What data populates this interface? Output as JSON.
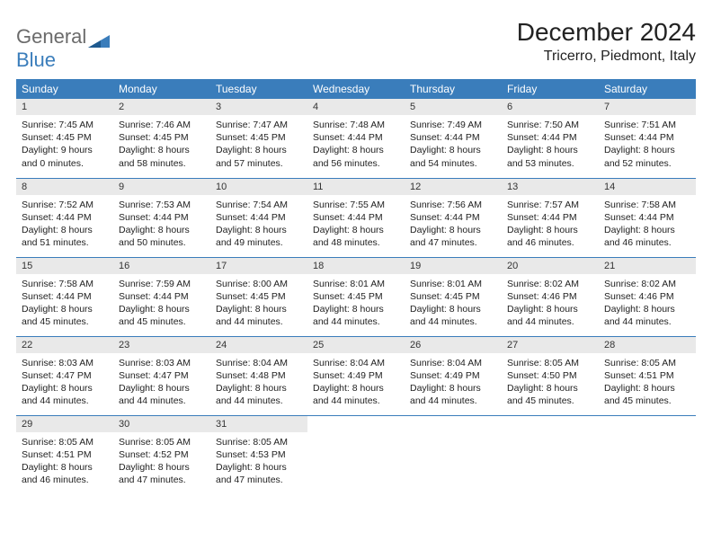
{
  "logo": {
    "text1": "General",
    "text2": "Blue",
    "shape_color": "#3a7dbb"
  },
  "title": "December 2024",
  "location": "Tricerro, Piedmont, Italy",
  "colors": {
    "header_bg": "#3a7dbb",
    "header_text": "#ffffff",
    "daynum_bg": "#e9e9e9",
    "border": "#3a7dbb"
  },
  "weekdays": [
    "Sunday",
    "Monday",
    "Tuesday",
    "Wednesday",
    "Thursday",
    "Friday",
    "Saturday"
  ],
  "weeks": [
    [
      {
        "num": "1",
        "sunrise": "7:45 AM",
        "sunset": "4:45 PM",
        "daylight": "9 hours and 0 minutes."
      },
      {
        "num": "2",
        "sunrise": "7:46 AM",
        "sunset": "4:45 PM",
        "daylight": "8 hours and 58 minutes."
      },
      {
        "num": "3",
        "sunrise": "7:47 AM",
        "sunset": "4:45 PM",
        "daylight": "8 hours and 57 minutes."
      },
      {
        "num": "4",
        "sunrise": "7:48 AM",
        "sunset": "4:44 PM",
        "daylight": "8 hours and 56 minutes."
      },
      {
        "num": "5",
        "sunrise": "7:49 AM",
        "sunset": "4:44 PM",
        "daylight": "8 hours and 54 minutes."
      },
      {
        "num": "6",
        "sunrise": "7:50 AM",
        "sunset": "4:44 PM",
        "daylight": "8 hours and 53 minutes."
      },
      {
        "num": "7",
        "sunrise": "7:51 AM",
        "sunset": "4:44 PM",
        "daylight": "8 hours and 52 minutes."
      }
    ],
    [
      {
        "num": "8",
        "sunrise": "7:52 AM",
        "sunset": "4:44 PM",
        "daylight": "8 hours and 51 minutes."
      },
      {
        "num": "9",
        "sunrise": "7:53 AM",
        "sunset": "4:44 PM",
        "daylight": "8 hours and 50 minutes."
      },
      {
        "num": "10",
        "sunrise": "7:54 AM",
        "sunset": "4:44 PM",
        "daylight": "8 hours and 49 minutes."
      },
      {
        "num": "11",
        "sunrise": "7:55 AM",
        "sunset": "4:44 PM",
        "daylight": "8 hours and 48 minutes."
      },
      {
        "num": "12",
        "sunrise": "7:56 AM",
        "sunset": "4:44 PM",
        "daylight": "8 hours and 47 minutes."
      },
      {
        "num": "13",
        "sunrise": "7:57 AM",
        "sunset": "4:44 PM",
        "daylight": "8 hours and 46 minutes."
      },
      {
        "num": "14",
        "sunrise": "7:58 AM",
        "sunset": "4:44 PM",
        "daylight": "8 hours and 46 minutes."
      }
    ],
    [
      {
        "num": "15",
        "sunrise": "7:58 AM",
        "sunset": "4:44 PM",
        "daylight": "8 hours and 45 minutes."
      },
      {
        "num": "16",
        "sunrise": "7:59 AM",
        "sunset": "4:44 PM",
        "daylight": "8 hours and 45 minutes."
      },
      {
        "num": "17",
        "sunrise": "8:00 AM",
        "sunset": "4:45 PM",
        "daylight": "8 hours and 44 minutes."
      },
      {
        "num": "18",
        "sunrise": "8:01 AM",
        "sunset": "4:45 PM",
        "daylight": "8 hours and 44 minutes."
      },
      {
        "num": "19",
        "sunrise": "8:01 AM",
        "sunset": "4:45 PM",
        "daylight": "8 hours and 44 minutes."
      },
      {
        "num": "20",
        "sunrise": "8:02 AM",
        "sunset": "4:46 PM",
        "daylight": "8 hours and 44 minutes."
      },
      {
        "num": "21",
        "sunrise": "8:02 AM",
        "sunset": "4:46 PM",
        "daylight": "8 hours and 44 minutes."
      }
    ],
    [
      {
        "num": "22",
        "sunrise": "8:03 AM",
        "sunset": "4:47 PM",
        "daylight": "8 hours and 44 minutes."
      },
      {
        "num": "23",
        "sunrise": "8:03 AM",
        "sunset": "4:47 PM",
        "daylight": "8 hours and 44 minutes."
      },
      {
        "num": "24",
        "sunrise": "8:04 AM",
        "sunset": "4:48 PM",
        "daylight": "8 hours and 44 minutes."
      },
      {
        "num": "25",
        "sunrise": "8:04 AM",
        "sunset": "4:49 PM",
        "daylight": "8 hours and 44 minutes."
      },
      {
        "num": "26",
        "sunrise": "8:04 AM",
        "sunset": "4:49 PM",
        "daylight": "8 hours and 44 minutes."
      },
      {
        "num": "27",
        "sunrise": "8:05 AM",
        "sunset": "4:50 PM",
        "daylight": "8 hours and 45 minutes."
      },
      {
        "num": "28",
        "sunrise": "8:05 AM",
        "sunset": "4:51 PM",
        "daylight": "8 hours and 45 minutes."
      }
    ],
    [
      {
        "num": "29",
        "sunrise": "8:05 AM",
        "sunset": "4:51 PM",
        "daylight": "8 hours and 46 minutes."
      },
      {
        "num": "30",
        "sunrise": "8:05 AM",
        "sunset": "4:52 PM",
        "daylight": "8 hours and 47 minutes."
      },
      {
        "num": "31",
        "sunrise": "8:05 AM",
        "sunset": "4:53 PM",
        "daylight": "8 hours and 47 minutes."
      },
      null,
      null,
      null,
      null
    ]
  ]
}
